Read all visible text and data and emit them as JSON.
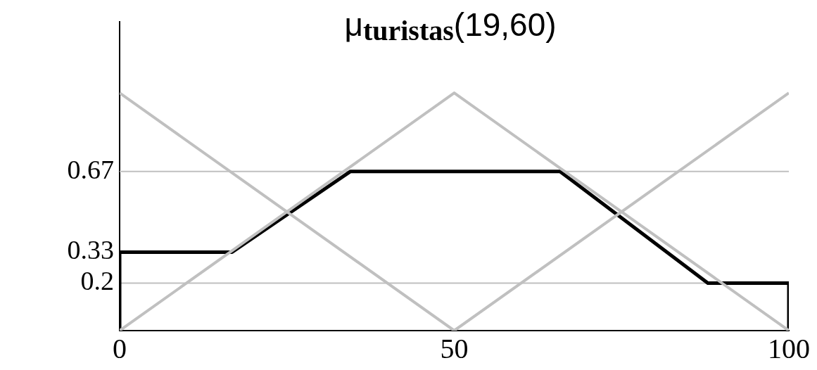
{
  "chart_data": {
    "type": "line",
    "title": "μ$_{turistas}$(19,60)",
    "xlim": [
      0,
      100
    ],
    "xticks": [
      0,
      50,
      100
    ],
    "ylim": [
      0,
      1.3
    ],
    "yticks": [
      0.2,
      0.33,
      0.67
    ],
    "grid": false,
    "legend": false,
    "marker": "none",
    "line_style": "solid",
    "ref_lines": [
      {
        "axis": "y",
        "value": 0.2,
        "color": "#c0c0c0"
      },
      {
        "axis": "y",
        "value": 0.67,
        "color": "#c0c0c0"
      }
    ],
    "series": [
      {
        "color": "#c0c0c0",
        "x": [
          0,
          50
        ],
        "values": [
          1,
          0
        ]
      },
      {
        "color": "#c0c0c0",
        "x": [
          0,
          50,
          100
        ],
        "values": [
          0,
          1,
          0
        ]
      },
      {
        "color": "#c0c0c0",
        "x": [
          50,
          100
        ],
        "values": [
          0,
          1
        ]
      },
      {
        "color": "#000000",
        "x": [
          0,
          0,
          16.8,
          34.5,
          65.8,
          87.9,
          100,
          100
        ],
        "values": [
          0,
          0.33,
          0.33,
          0.67,
          0.67,
          0.2,
          0.2,
          0
        ]
      }
    ]
  }
}
